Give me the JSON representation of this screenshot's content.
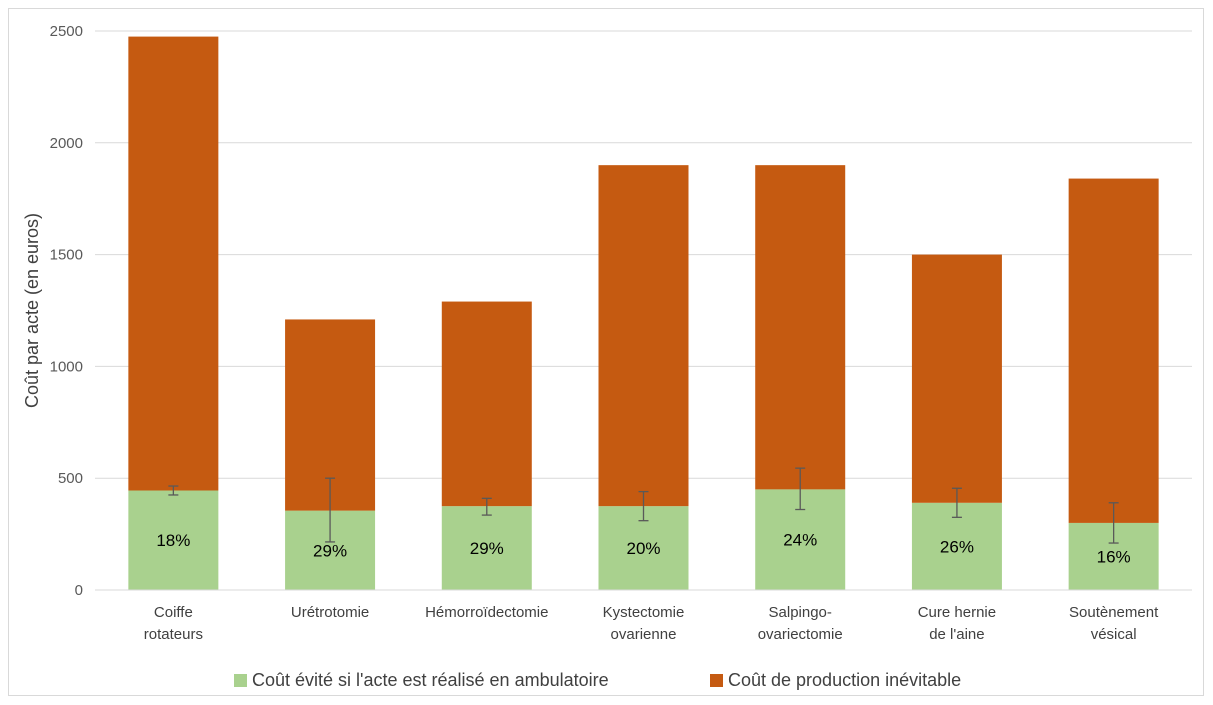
{
  "chart_data": {
    "type": "bar",
    "stacked": true,
    "categories": [
      [
        "Coiffe",
        "rotateurs"
      ],
      [
        "Urétrotomie"
      ],
      [
        "Hémorroïdectomie"
      ],
      [
        "Kystectomie",
        "ovarienne"
      ],
      [
        "Salpingo-",
        "ovariectomie"
      ],
      [
        "Cure hernie",
        "de l'aine"
      ],
      [
        "Soutènement",
        "vésical"
      ]
    ],
    "series": [
      {
        "name": "Coût évité si l'acte est réalisé en ambulatoire",
        "color": "#a9d18e",
        "values": [
          445,
          355,
          375,
          375,
          450,
          390,
          300
        ],
        "error_low": [
          425,
          215,
          335,
          310,
          360,
          325,
          210
        ],
        "error_high": [
          465,
          500,
          410,
          440,
          545,
          455,
          390
        ],
        "labels": [
          "18%",
          "29%",
          "29%",
          "20%",
          "24%",
          "26%",
          "16%"
        ]
      },
      {
        "name": "Coût de production inévitable",
        "color": "#c55a11",
        "values": [
          2030,
          855,
          915,
          1525,
          1450,
          1110,
          1540
        ]
      }
    ],
    "ylabel": "Coût par acte (en euros)",
    "ylim": [
      0,
      2500
    ],
    "yticks": [
      0,
      500,
      1000,
      1500,
      2000,
      2500
    ],
    "grid": true,
    "legend": "bottom"
  }
}
